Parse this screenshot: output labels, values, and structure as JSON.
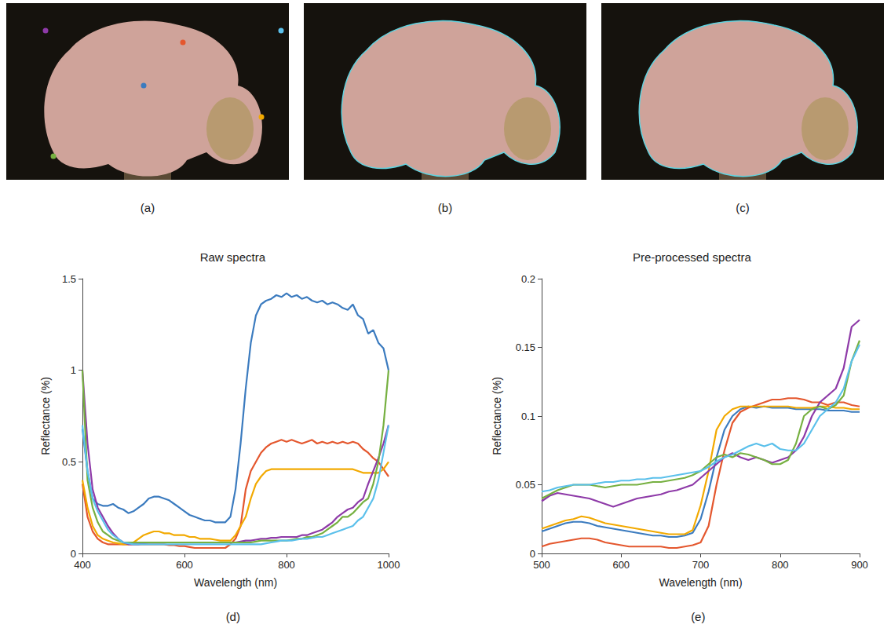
{
  "image_panels": [
    {
      "panel_label": "(a)"
    },
    {
      "panel_label": "(b)"
    },
    {
      "panel_label": "(c)"
    }
  ],
  "chart_data": [
    {
      "type": "line",
      "panel_label": "(d)",
      "title": "Raw spectra",
      "x_label": "Wavelength (nm)",
      "y_label": "Reflectance (%)",
      "xlim": [
        400,
        1000
      ],
      "xticks": [
        400,
        600,
        800,
        1000
      ],
      "ylim": [
        0,
        1.5
      ],
      "yticks": [
        0,
        0.5,
        1,
        1.5
      ],
      "grid": false,
      "x": [
        400,
        410,
        420,
        430,
        440,
        450,
        460,
        470,
        480,
        490,
        500,
        510,
        520,
        530,
        540,
        550,
        560,
        570,
        580,
        590,
        600,
        610,
        620,
        630,
        640,
        650,
        660,
        670,
        680,
        690,
        700,
        710,
        720,
        730,
        740,
        750,
        760,
        770,
        780,
        790,
        800,
        810,
        820,
        830,
        840,
        850,
        860,
        870,
        880,
        890,
        900,
        910,
        920,
        930,
        940,
        950,
        960,
        970,
        980,
        990,
        1000
      ],
      "series": [
        {
          "color": "#3b7bbf",
          "values": [
            0.68,
            0.45,
            0.3,
            0.27,
            0.26,
            0.26,
            0.27,
            0.25,
            0.24,
            0.22,
            0.23,
            0.25,
            0.27,
            0.3,
            0.31,
            0.31,
            0.3,
            0.29,
            0.27,
            0.25,
            0.23,
            0.21,
            0.2,
            0.19,
            0.18,
            0.18,
            0.17,
            0.17,
            0.17,
            0.2,
            0.35,
            0.6,
            0.9,
            1.15,
            1.3,
            1.36,
            1.38,
            1.39,
            1.41,
            1.4,
            1.42,
            1.4,
            1.41,
            1.39,
            1.4,
            1.38,
            1.37,
            1.38,
            1.36,
            1.37,
            1.36,
            1.34,
            1.33,
            1.36,
            1.3,
            1.28,
            1.2,
            1.22,
            1.15,
            1.12,
            1.0
          ]
        },
        {
          "color": "#e4572e",
          "values": [
            0.38,
            0.2,
            0.12,
            0.08,
            0.06,
            0.05,
            0.05,
            0.05,
            0.05,
            0.05,
            0.05,
            0.05,
            0.05,
            0.05,
            0.05,
            0.05,
            0.05,
            0.045,
            0.045,
            0.04,
            0.04,
            0.035,
            0.03,
            0.03,
            0.03,
            0.03,
            0.03,
            0.03,
            0.03,
            0.05,
            0.08,
            0.15,
            0.35,
            0.45,
            0.5,
            0.55,
            0.58,
            0.6,
            0.61,
            0.62,
            0.61,
            0.62,
            0.61,
            0.6,
            0.61,
            0.62,
            0.6,
            0.61,
            0.6,
            0.61,
            0.6,
            0.61,
            0.6,
            0.61,
            0.6,
            0.57,
            0.55,
            0.52,
            0.5,
            0.46,
            0.42
          ]
        },
        {
          "color": "#f2a900",
          "values": [
            0.4,
            0.25,
            0.15,
            0.1,
            0.08,
            0.07,
            0.06,
            0.055,
            0.05,
            0.05,
            0.06,
            0.08,
            0.1,
            0.11,
            0.12,
            0.12,
            0.11,
            0.11,
            0.1,
            0.1,
            0.1,
            0.09,
            0.09,
            0.08,
            0.08,
            0.08,
            0.075,
            0.07,
            0.07,
            0.07,
            0.1,
            0.15,
            0.2,
            0.3,
            0.38,
            0.42,
            0.45,
            0.46,
            0.46,
            0.46,
            0.46,
            0.46,
            0.46,
            0.46,
            0.46,
            0.46,
            0.46,
            0.46,
            0.46,
            0.46,
            0.46,
            0.46,
            0.46,
            0.46,
            0.45,
            0.44,
            0.44,
            0.44,
            0.44,
            0.46,
            0.5
          ]
        },
        {
          "color": "#8e3aa8",
          "values": [
            1.0,
            0.6,
            0.35,
            0.25,
            0.2,
            0.15,
            0.11,
            0.08,
            0.06,
            0.05,
            0.05,
            0.05,
            0.055,
            0.06,
            0.06,
            0.06,
            0.06,
            0.06,
            0.06,
            0.06,
            0.06,
            0.06,
            0.06,
            0.06,
            0.06,
            0.06,
            0.06,
            0.06,
            0.06,
            0.06,
            0.06,
            0.065,
            0.07,
            0.07,
            0.075,
            0.08,
            0.08,
            0.085,
            0.085,
            0.09,
            0.09,
            0.09,
            0.09,
            0.1,
            0.1,
            0.11,
            0.12,
            0.13,
            0.15,
            0.17,
            0.2,
            0.22,
            0.24,
            0.25,
            0.28,
            0.3,
            0.38,
            0.45,
            0.52,
            0.6,
            0.7
          ]
        },
        {
          "color": "#76b041",
          "values": [
            1.0,
            0.4,
            0.25,
            0.17,
            0.12,
            0.1,
            0.08,
            0.07,
            0.06,
            0.06,
            0.06,
            0.06,
            0.06,
            0.06,
            0.06,
            0.06,
            0.06,
            0.06,
            0.06,
            0.06,
            0.06,
            0.06,
            0.06,
            0.06,
            0.06,
            0.06,
            0.06,
            0.06,
            0.06,
            0.06,
            0.06,
            0.06,
            0.06,
            0.06,
            0.065,
            0.07,
            0.07,
            0.07,
            0.07,
            0.07,
            0.07,
            0.075,
            0.08,
            0.08,
            0.09,
            0.09,
            0.1,
            0.11,
            0.13,
            0.15,
            0.17,
            0.2,
            0.2,
            0.22,
            0.25,
            0.28,
            0.3,
            0.38,
            0.5,
            0.7,
            1.0
          ]
        },
        {
          "color": "#5bc0eb",
          "values": [
            0.7,
            0.45,
            0.3,
            0.23,
            0.18,
            0.13,
            0.1,
            0.08,
            0.06,
            0.055,
            0.05,
            0.05,
            0.05,
            0.05,
            0.05,
            0.05,
            0.05,
            0.05,
            0.05,
            0.05,
            0.05,
            0.05,
            0.05,
            0.05,
            0.05,
            0.05,
            0.05,
            0.05,
            0.05,
            0.05,
            0.05,
            0.05,
            0.05,
            0.05,
            0.05,
            0.05,
            0.055,
            0.06,
            0.065,
            0.07,
            0.07,
            0.07,
            0.075,
            0.08,
            0.08,
            0.085,
            0.09,
            0.09,
            0.1,
            0.11,
            0.12,
            0.13,
            0.14,
            0.15,
            0.18,
            0.2,
            0.25,
            0.3,
            0.4,
            0.55,
            0.7
          ]
        }
      ]
    },
    {
      "type": "line",
      "panel_label": "(e)",
      "title": "Pre-processed spectra",
      "x_label": "Wavelength (nm)",
      "y_label": "Reflectance (%)",
      "xlim": [
        500,
        900
      ],
      "xticks": [
        500,
        600,
        700,
        800,
        900
      ],
      "ylim": [
        0,
        0.2
      ],
      "yticks": [
        0,
        0.05,
        0.1,
        0.15,
        0.2
      ],
      "grid": false,
      "x": [
        500,
        510,
        520,
        530,
        540,
        550,
        560,
        570,
        580,
        590,
        600,
        610,
        620,
        630,
        640,
        650,
        660,
        670,
        680,
        690,
        700,
        710,
        720,
        730,
        740,
        750,
        760,
        770,
        780,
        790,
        800,
        810,
        820,
        830,
        840,
        850,
        860,
        870,
        880,
        890,
        900
      ],
      "series": [
        {
          "color": "#3b7bbf",
          "values": [
            0.016,
            0.018,
            0.02,
            0.022,
            0.023,
            0.023,
            0.022,
            0.02,
            0.019,
            0.018,
            0.017,
            0.016,
            0.015,
            0.014,
            0.013,
            0.013,
            0.012,
            0.012,
            0.013,
            0.015,
            0.025,
            0.045,
            0.07,
            0.09,
            0.1,
            0.105,
            0.107,
            0.106,
            0.107,
            0.106,
            0.106,
            0.106,
            0.105,
            0.105,
            0.105,
            0.105,
            0.104,
            0.104,
            0.104,
            0.103,
            0.103
          ]
        },
        {
          "color": "#e4572e",
          "values": [
            0.005,
            0.007,
            0.008,
            0.009,
            0.01,
            0.011,
            0.011,
            0.01,
            0.008,
            0.007,
            0.006,
            0.005,
            0.005,
            0.005,
            0.005,
            0.005,
            0.004,
            0.004,
            0.005,
            0.006,
            0.008,
            0.02,
            0.05,
            0.075,
            0.095,
            0.103,
            0.106,
            0.108,
            0.11,
            0.112,
            0.112,
            0.113,
            0.113,
            0.112,
            0.11,
            0.11,
            0.108,
            0.11,
            0.11,
            0.108,
            0.107
          ]
        },
        {
          "color": "#f2a900",
          "values": [
            0.018,
            0.02,
            0.022,
            0.024,
            0.025,
            0.027,
            0.026,
            0.024,
            0.022,
            0.021,
            0.02,
            0.019,
            0.018,
            0.017,
            0.016,
            0.015,
            0.014,
            0.014,
            0.014,
            0.017,
            0.035,
            0.06,
            0.09,
            0.1,
            0.105,
            0.107,
            0.107,
            0.107,
            0.107,
            0.107,
            0.107,
            0.107,
            0.106,
            0.106,
            0.106,
            0.107,
            0.107,
            0.106,
            0.106,
            0.105,
            0.105
          ]
        },
        {
          "color": "#8e3aa8",
          "values": [
            0.038,
            0.042,
            0.044,
            0.043,
            0.042,
            0.041,
            0.04,
            0.038,
            0.036,
            0.034,
            0.036,
            0.038,
            0.04,
            0.041,
            0.042,
            0.043,
            0.045,
            0.046,
            0.048,
            0.05,
            0.055,
            0.06,
            0.065,
            0.07,
            0.073,
            0.07,
            0.068,
            0.07,
            0.068,
            0.066,
            0.068,
            0.07,
            0.075,
            0.085,
            0.1,
            0.11,
            0.115,
            0.12,
            0.135,
            0.165,
            0.17
          ]
        },
        {
          "color": "#76b041",
          "values": [
            0.04,
            0.043,
            0.046,
            0.048,
            0.05,
            0.05,
            0.05,
            0.049,
            0.048,
            0.049,
            0.05,
            0.05,
            0.05,
            0.051,
            0.052,
            0.052,
            0.053,
            0.054,
            0.055,
            0.057,
            0.06,
            0.065,
            0.07,
            0.072,
            0.07,
            0.073,
            0.072,
            0.07,
            0.068,
            0.065,
            0.065,
            0.068,
            0.08,
            0.1,
            0.105,
            0.107,
            0.105,
            0.108,
            0.115,
            0.14,
            0.155
          ]
        },
        {
          "color": "#5bc0eb",
          "values": [
            0.045,
            0.046,
            0.048,
            0.049,
            0.05,
            0.05,
            0.05,
            0.051,
            0.052,
            0.052,
            0.053,
            0.053,
            0.054,
            0.054,
            0.055,
            0.055,
            0.056,
            0.057,
            0.058,
            0.059,
            0.06,
            0.063,
            0.067,
            0.07,
            0.072,
            0.075,
            0.078,
            0.08,
            0.078,
            0.08,
            0.076,
            0.075,
            0.075,
            0.08,
            0.09,
            0.1,
            0.105,
            0.11,
            0.12,
            0.14,
            0.152
          ]
        }
      ]
    }
  ]
}
